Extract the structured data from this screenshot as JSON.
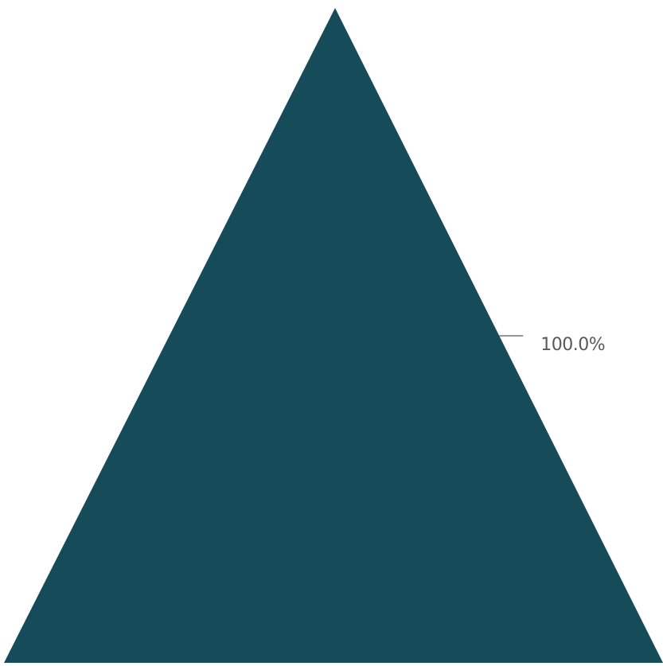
{
  "chart_data": {
    "type": "pyramid",
    "title": "",
    "series": [
      {
        "values": [
          100.0
        ],
        "labels": [
          "100.0%"
        ],
        "color": "#164B5A"
      }
    ]
  },
  "colors": {
    "segment": "#164B5A",
    "label": "#595959",
    "background": "#ffffff"
  }
}
